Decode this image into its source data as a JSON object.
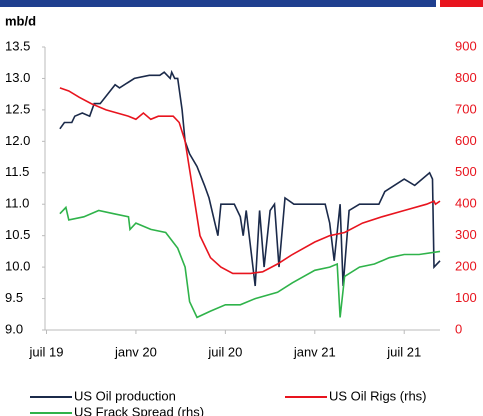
{
  "chart_data": {
    "type": "line",
    "y_unit_label": "mb/d",
    "xlim": [
      -0.1,
      26.4
    ],
    "xticks": [
      {
        "value": 0,
        "label": "juil 19"
      },
      {
        "value": 6,
        "label": "janv 20"
      },
      {
        "value": 12,
        "label": "juil 20"
      },
      {
        "value": 18,
        "label": "janv 21"
      },
      {
        "value": 24,
        "label": "juil 21"
      }
    ],
    "ylim": [
      9.0,
      13.5
    ],
    "yticks": [
      {
        "value": 9.0,
        "label": "9.0"
      },
      9.5,
      {
        "value": 10.0,
        "label": "10.0"
      },
      10.5,
      {
        "value": 11.0,
        "label": "11.0"
      },
      11.5,
      {
        "value": 12.0,
        "label": "12.0"
      },
      12.5,
      {
        "value": 13.0,
        "label": "13.0"
      },
      13.5
    ],
    "y2lim": [
      0,
      900
    ],
    "y2ticks": [
      0,
      100,
      200,
      300,
      400,
      500,
      600,
      700,
      800,
      900
    ],
    "series": [
      {
        "name": "US Oil production",
        "color": "#1b2a4a",
        "x": [
          0.9,
          1.2,
          1.7,
          1.9,
          2.4,
          2.9,
          3.2,
          3.6,
          4.6,
          4.9,
          5.9,
          6.9,
          7.6,
          7.9,
          8.3,
          8.4,
          8.6,
          8.8,
          9.1,
          9.3,
          9.6,
          10.1,
          10.6,
          10.9,
          11.3,
          11.5,
          11.7,
          12.6,
          13.0,
          13.2,
          13.4,
          14.0,
          14.3,
          14.6,
          15.0,
          15.3,
          15.6,
          16.0,
          16.6,
          18.7,
          19.0,
          19.3,
          19.7,
          19.9,
          20.3,
          21.0,
          22.3,
          22.7,
          24.0,
          24.7,
          25.7,
          25.9,
          26.0,
          26.4
        ],
        "values": [
          12.2,
          12.3,
          12.3,
          12.4,
          12.45,
          12.4,
          12.6,
          12.6,
          12.9,
          12.85,
          13.0,
          13.05,
          13.05,
          13.1,
          13.0,
          13.1,
          13.0,
          13.0,
          12.5,
          12.0,
          11.8,
          11.6,
          11.3,
          11.1,
          10.7,
          10.5,
          11.0,
          11.0,
          10.8,
          10.5,
          10.9,
          9.7,
          10.9,
          10.0,
          10.9,
          11.0,
          10.0,
          11.1,
          11.0,
          11.0,
          10.7,
          10.1,
          11.0,
          9.7,
          10.9,
          11.0,
          11.0,
          11.2,
          11.4,
          11.3,
          11.5,
          11.4,
          10.0,
          10.1
        ]
      },
      {
        "name": "US Oil Rigs (rhs)",
        "color": "#e8141e",
        "axis": "y2",
        "x": [
          0.9,
          1.5,
          2.2,
          3.0,
          4.0,
          5.5,
          6.0,
          6.5,
          7.0,
          7.5,
          8.5,
          8.9,
          9.3,
          9.8,
          10.3,
          11.0,
          11.7,
          12.5,
          13.7,
          14.5,
          15.5,
          16.5,
          18.0,
          19.0,
          20.0,
          21.2,
          22.5,
          24.0,
          25.5,
          26.0,
          26.1,
          26.4
        ],
        "values": [
          770,
          760,
          740,
          720,
          700,
          680,
          670,
          690,
          670,
          680,
          680,
          660,
          600,
          450,
          300,
          230,
          200,
          180,
          180,
          185,
          210,
          240,
          280,
          300,
          310,
          340,
          360,
          380,
          400,
          410,
          400,
          410
        ]
      },
      {
        "name": "US Frack Spread (rhs)",
        "color": "#2fb34a",
        "axis": "y2",
        "x": [
          0.9,
          1.3,
          1.5,
          2.5,
          3.5,
          4.5,
          5.5,
          5.6,
          6.0,
          7.0,
          8.0,
          8.8,
          9.3,
          9.6,
          10.1,
          11.0,
          12.0,
          13.0,
          14.0,
          15.5,
          16.5,
          18.0,
          19.0,
          19.5,
          19.7,
          20.0,
          21.0,
          22.0,
          23.0,
          24.0,
          25.0,
          26.4
        ],
        "values": [
          370,
          390,
          350,
          360,
          380,
          370,
          360,
          320,
          340,
          320,
          310,
          260,
          200,
          90,
          40,
          60,
          80,
          80,
          100,
          120,
          150,
          190,
          200,
          210,
          40,
          170,
          200,
          210,
          230,
          240,
          240,
          250
        ]
      }
    ]
  }
}
